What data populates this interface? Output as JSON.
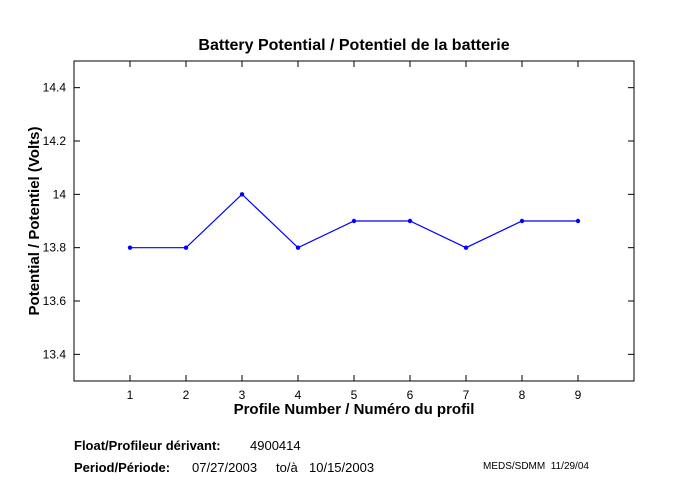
{
  "chart_data": {
    "type": "line",
    "title": "Battery Potential / Potentiel de la batterie",
    "xlabel": "Profile Number / Numéro du profil",
    "ylabel": "Potential / Potentiel (Volts)",
    "x": [
      1,
      2,
      3,
      4,
      5,
      6,
      7,
      8,
      9
    ],
    "series": [
      {
        "name": "Battery potential",
        "values": [
          13.8,
          13.8,
          14.0,
          13.8,
          13.9,
          13.9,
          13.8,
          13.9,
          13.9
        ],
        "color": "#0000ff"
      }
    ],
    "xlim": [
      0,
      10
    ],
    "ylim": [
      13.3,
      14.5
    ],
    "xticks": [
      "1",
      "2",
      "3",
      "4",
      "5",
      "6",
      "7",
      "8",
      "9"
    ],
    "yticks": [
      "13.4",
      "13.6",
      "13.8",
      "14",
      "14.2",
      "14.4"
    ],
    "grid": false
  },
  "footer": {
    "float_label": "Float/Profileur dérivant:",
    "float_value": "4900414",
    "period_label": "Period/Période:",
    "period_start": "07/27/2003",
    "period_sep": "to/à",
    "period_end": "10/15/2003",
    "credit": "MEDS/SDMM  11/29/04"
  }
}
